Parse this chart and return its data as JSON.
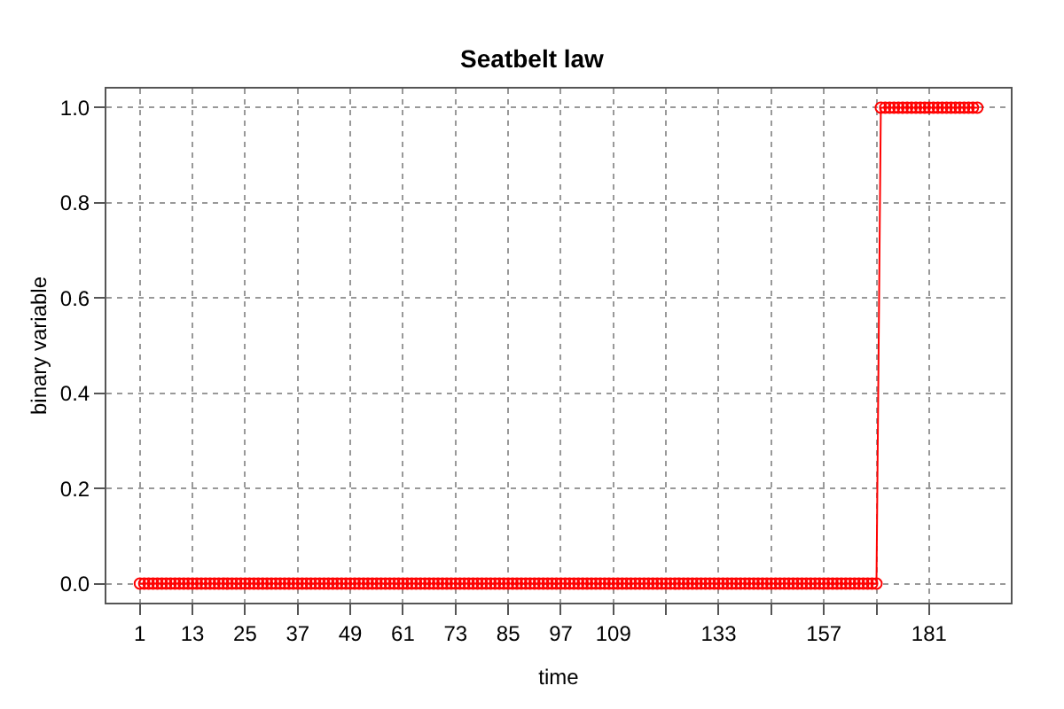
{
  "chart_data": {
    "type": "line",
    "title": "Seatbelt law",
    "xlabel": "time",
    "ylabel": "binary variable",
    "marker": "circle",
    "grid": true,
    "line_style": "solid",
    "xlim": [
      -6.64,
      199.64
    ],
    "xticks": [
      1,
      13,
      25,
      37,
      49,
      61,
      73,
      85,
      97,
      109,
      {
        "value": 121,
        "label": null
      },
      133,
      {
        "value": 145,
        "label": null
      },
      157,
      {
        "value": 169,
        "label": null
      },
      181
    ],
    "ylim": [
      -0.04,
      1.04
    ],
    "yticks": [
      {
        "value": 0,
        "label": "0.0"
      },
      {
        "value": 0.2,
        "label": "0.2"
      },
      {
        "value": 0.4,
        "label": "0.4"
      },
      {
        "value": 0.6,
        "label": "0.6"
      },
      {
        "value": 0.8,
        "label": "0.8"
      },
      {
        "value": 1,
        "label": "1.0"
      }
    ],
    "x": [
      1,
      2,
      3,
      4,
      5,
      6,
      7,
      8,
      9,
      10,
      11,
      12,
      13,
      14,
      15,
      16,
      17,
      18,
      19,
      20,
      21,
      22,
      23,
      24,
      25,
      26,
      27,
      28,
      29,
      30,
      31,
      32,
      33,
      34,
      35,
      36,
      37,
      38,
      39,
      40,
      41,
      42,
      43,
      44,
      45,
      46,
      47,
      48,
      49,
      50,
      51,
      52,
      53,
      54,
      55,
      56,
      57,
      58,
      59,
      60,
      61,
      62,
      63,
      64,
      65,
      66,
      67,
      68,
      69,
      70,
      71,
      72,
      73,
      74,
      75,
      76,
      77,
      78,
      79,
      80,
      81,
      82,
      83,
      84,
      85,
      86,
      87,
      88,
      89,
      90,
      91,
      92,
      93,
      94,
      95,
      96,
      97,
      98,
      99,
      100,
      101,
      102,
      103,
      104,
      105,
      106,
      107,
      108,
      109,
      110,
      111,
      112,
      113,
      114,
      115,
      116,
      117,
      118,
      119,
      120,
      121,
      122,
      123,
      124,
      125,
      126,
      127,
      128,
      129,
      130,
      131,
      132,
      133,
      134,
      135,
      136,
      137,
      138,
      139,
      140,
      141,
      142,
      143,
      144,
      145,
      146,
      147,
      148,
      149,
      150,
      151,
      152,
      153,
      154,
      155,
      156,
      157,
      158,
      159,
      160,
      161,
      162,
      163,
      164,
      165,
      166,
      167,
      168,
      169,
      170,
      171,
      172,
      173,
      174,
      175,
      176,
      177,
      178,
      179,
      180,
      181,
      182,
      183,
      184,
      185,
      186,
      187,
      188,
      189,
      190,
      191,
      192
    ],
    "series": [
      {
        "color": "#ff0000",
        "values": [
          0,
          0,
          0,
          0,
          0,
          0,
          0,
          0,
          0,
          0,
          0,
          0,
          0,
          0,
          0,
          0,
          0,
          0,
          0,
          0,
          0,
          0,
          0,
          0,
          0,
          0,
          0,
          0,
          0,
          0,
          0,
          0,
          0,
          0,
          0,
          0,
          0,
          0,
          0,
          0,
          0,
          0,
          0,
          0,
          0,
          0,
          0,
          0,
          0,
          0,
          0,
          0,
          0,
          0,
          0,
          0,
          0,
          0,
          0,
          0,
          0,
          0,
          0,
          0,
          0,
          0,
          0,
          0,
          0,
          0,
          0,
          0,
          0,
          0,
          0,
          0,
          0,
          0,
          0,
          0,
          0,
          0,
          0,
          0,
          0,
          0,
          0,
          0,
          0,
          0,
          0,
          0,
          0,
          0,
          0,
          0,
          0,
          0,
          0,
          0,
          0,
          0,
          0,
          0,
          0,
          0,
          0,
          0,
          0,
          0,
          0,
          0,
          0,
          0,
          0,
          0,
          0,
          0,
          0,
          0,
          0,
          0,
          0,
          0,
          0,
          0,
          0,
          0,
          0,
          0,
          0,
          0,
          0,
          0,
          0,
          0,
          0,
          0,
          0,
          0,
          0,
          0,
          0,
          0,
          0,
          0,
          0,
          0,
          0,
          0,
          0,
          0,
          0,
          0,
          0,
          0,
          0,
          0,
          0,
          0,
          0,
          0,
          0,
          0,
          0,
          0,
          0,
          0,
          0,
          1,
          1,
          1,
          1,
          1,
          1,
          1,
          1,
          1,
          1,
          1,
          1,
          1,
          1,
          1,
          1,
          1,
          1,
          1,
          1,
          1,
          1,
          1
        ]
      }
    ]
  }
}
